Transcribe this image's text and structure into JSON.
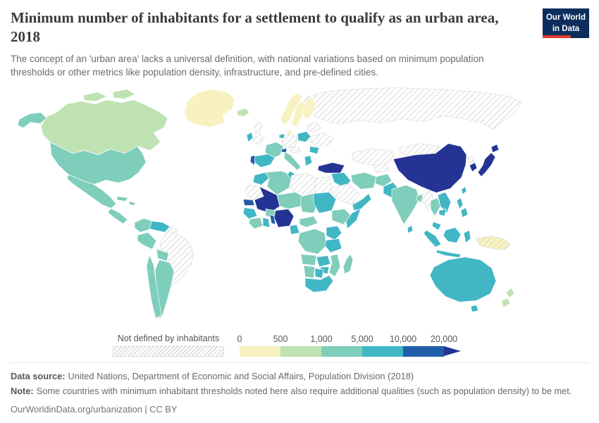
{
  "header": {
    "title": "Minimum number of inhabitants for a settlement to qualify as an urban area, 2018",
    "subtitle": "The concept of an 'urban area' lacks a universal definition, with national variations based on minimum population thresholds or other metrics like population density, infrastructure, and pre-defined cities.",
    "logo": {
      "line1": "Our World",
      "line2": "in Data",
      "background": "#0d2e5c",
      "accent": "#e0392f"
    }
  },
  "legend": {
    "no_data_label": "Not defined by inhabitants",
    "ticks": [
      "0",
      "500",
      "1,000",
      "5,000",
      "10,000",
      "20,000"
    ]
  },
  "footer": {
    "source_label": "Data source:",
    "source_text": "United Nations, Department of Economic and Social Affairs, Population Division (2018)",
    "note_label": "Note:",
    "note_text": "Some countries with minimum inhabitant thresholds noted here also require additional qualities (such as population density) to be met.",
    "citation": "OurWorldinData.org/urbanization | CC BY"
  },
  "chart_data": {
    "type": "heatmap",
    "subtype": "choropleth-world-map",
    "title": "Minimum number of inhabitants for a settlement to qualify as an urban area",
    "year": "2018",
    "unit": "inhabitants",
    "palette": [
      "#f7f2c0",
      "#bfe2b2",
      "#7fcdbb",
      "#41b6c4",
      "#225ea8",
      "#253494"
    ],
    "bins": [
      "0–500",
      "500–1,000",
      "1,000–5,000",
      "5,000–10,000",
      "10,000–20,000",
      "20,000+"
    ],
    "no_data_label": "Not defined by inhabitants",
    "legend_position": "bottom",
    "countries": [
      {
        "name": "Russia",
        "bin": "Not defined by inhabitants"
      },
      {
        "name": "Kazakhstan",
        "bin": "Not defined by inhabitants"
      },
      {
        "name": "Mongolia",
        "bin": "Not defined by inhabitants"
      },
      {
        "name": "Brazil",
        "bin": "Not defined by inhabitants"
      },
      {
        "name": "United Kingdom",
        "bin": "Not defined by inhabitants"
      },
      {
        "name": "Germany",
        "bin": "Not defined by inhabitants"
      },
      {
        "name": "Ukraine",
        "bin": "Not defined by inhabitants"
      },
      {
        "name": "Saudi Arabia",
        "bin": "Not defined by inhabitants"
      },
      {
        "name": "Egypt",
        "bin": "Not defined by inhabitants"
      },
      {
        "name": "Libya",
        "bin": "Not defined by inhabitants"
      },
      {
        "name": "Mauritania",
        "bin": "Not defined by inhabitants"
      },
      {
        "name": "Myanmar",
        "bin": "Not defined by inhabitants"
      },
      {
        "name": "North Korea",
        "bin": "Not defined by inhabitants"
      },
      {
        "name": "Papua New Guinea",
        "bin": "Not defined by inhabitants"
      },
      {
        "name": "Greenland",
        "bin": "0–500"
      },
      {
        "name": "Norway",
        "bin": "0–500"
      },
      {
        "name": "Sweden",
        "bin": "0–500"
      },
      {
        "name": "Finland",
        "bin": "0–500"
      },
      {
        "name": "Denmark",
        "bin": "0–500"
      },
      {
        "name": "Canada",
        "bin": "500–1,000"
      },
      {
        "name": "Iceland",
        "bin": "500–1,000"
      },
      {
        "name": "New Zealand",
        "bin": "500–1,000"
      },
      {
        "name": "United States",
        "bin": "1,000–5,000"
      },
      {
        "name": "Mexico",
        "bin": "1,000–5,000"
      },
      {
        "name": "Colombia",
        "bin": "1,000–5,000"
      },
      {
        "name": "Peru",
        "bin": "1,000–5,000"
      },
      {
        "name": "Bolivia",
        "bin": "1,000–5,000"
      },
      {
        "name": "Chile",
        "bin": "1,000–5,000"
      },
      {
        "name": "Argentina",
        "bin": "1,000–5,000"
      },
      {
        "name": "France",
        "bin": "1,000–5,000"
      },
      {
        "name": "Italy",
        "bin": "1,000–5,000"
      },
      {
        "name": "Algeria",
        "bin": "1,000–5,000"
      },
      {
        "name": "Niger",
        "bin": "1,000–5,000"
      },
      {
        "name": "Chad",
        "bin": "1,000–5,000"
      },
      {
        "name": "Ethiopia",
        "bin": "1,000–5,000"
      },
      {
        "name": "Angola",
        "bin": "1,000–5,000"
      },
      {
        "name": "Democratic Republic of Congo",
        "bin": "1,000–5,000"
      },
      {
        "name": "Madagascar",
        "bin": "1,000–5,000"
      },
      {
        "name": "Namibia",
        "bin": "1,000–5,000"
      },
      {
        "name": "Iran",
        "bin": "1,000–5,000"
      },
      {
        "name": "Afghanistan",
        "bin": "1,000–5,000"
      },
      {
        "name": "India",
        "bin": "1,000–5,000"
      },
      {
        "name": "Thailand",
        "bin": "1,000–5,000"
      },
      {
        "name": "Burkina Faso",
        "bin": "1,000–5,000"
      },
      {
        "name": "Cote d'Ivoire",
        "bin": "1,000–5,000"
      },
      {
        "name": "Spain",
        "bin": "5,000–10,000"
      },
      {
        "name": "Ireland",
        "bin": "5,000–10,000"
      },
      {
        "name": "Poland",
        "bin": "5,000–10,000"
      },
      {
        "name": "Romania",
        "bin": "5,000–10,000"
      },
      {
        "name": "Greece",
        "bin": "5,000–10,000"
      },
      {
        "name": "Morocco",
        "bin": "5,000–10,000"
      },
      {
        "name": "Tunisia",
        "bin": "5,000–10,000"
      },
      {
        "name": "Ghana",
        "bin": "5,000–10,000"
      },
      {
        "name": "Guinea",
        "bin": "5,000–10,000"
      },
      {
        "name": "Cameroon",
        "bin": "5,000–10,000"
      },
      {
        "name": "Kenya",
        "bin": "5,000–10,000"
      },
      {
        "name": "Tanzania",
        "bin": "5,000–10,000"
      },
      {
        "name": "Zambia",
        "bin": "5,000–10,000"
      },
      {
        "name": "Zimbabwe",
        "bin": "5,000–10,000"
      },
      {
        "name": "Botswana",
        "bin": "5,000–10,000"
      },
      {
        "name": "South Africa",
        "bin": "5,000–10,000"
      },
      {
        "name": "Somalia",
        "bin": "5,000–10,000"
      },
      {
        "name": "Venezuela",
        "bin": "5,000–10,000"
      },
      {
        "name": "Iraq",
        "bin": "5,000–10,000"
      },
      {
        "name": "Yemen",
        "bin": "5,000–10,000"
      },
      {
        "name": "Pakistan",
        "bin": "5,000–10,000"
      },
      {
        "name": "Vietnam",
        "bin": "5,000–10,000"
      },
      {
        "name": "Cambodia",
        "bin": "5,000–10,000"
      },
      {
        "name": "Malaysia",
        "bin": "5,000–10,000"
      },
      {
        "name": "Indonesia",
        "bin": "5,000–10,000"
      },
      {
        "name": "Philippines",
        "bin": "5,000–10,000"
      },
      {
        "name": "Sri Lanka",
        "bin": "5,000–10,000"
      },
      {
        "name": "Australia",
        "bin": "5,000–10,000"
      },
      {
        "name": "Portugal",
        "bin": "10,000–20,000"
      },
      {
        "name": "Switzerland",
        "bin": "10,000–20,000"
      },
      {
        "name": "Senegal",
        "bin": "10,000–20,000"
      },
      {
        "name": "Benin",
        "bin": "10,000–20,000"
      },
      {
        "name": "China",
        "bin": "20,000+"
      },
      {
        "name": "Japan",
        "bin": "20,000+"
      },
      {
        "name": "South Korea",
        "bin": "20,000+"
      },
      {
        "name": "Turkey",
        "bin": "20,000+"
      },
      {
        "name": "Mali",
        "bin": "20,000+"
      },
      {
        "name": "Nigeria",
        "bin": "20,000+"
      }
    ]
  }
}
